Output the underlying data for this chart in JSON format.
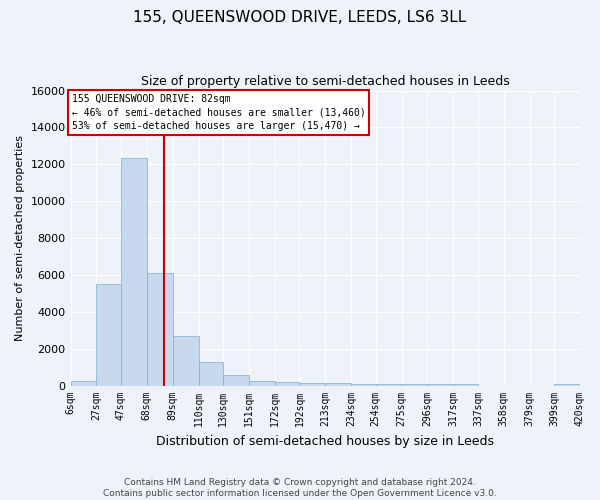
{
  "title": "155, QUEENSWOOD DRIVE, LEEDS, LS6 3LL",
  "subtitle": "Size of property relative to semi-detached houses in Leeds",
  "xlabel": "Distribution of semi-detached houses by size in Leeds",
  "ylabel": "Number of semi-detached properties",
  "bar_color": "#c8d9ee",
  "bar_edge_color": "#7aadd4",
  "background_color": "#eef2f9",
  "vline_color": "#cc0000",
  "vline_x": 82,
  "annotation_title": "155 QUEENSWOOD DRIVE: 82sqm",
  "annotation_line1": "← 46% of semi-detached houses are smaller (13,460)",
  "annotation_line2": "53% of semi-detached houses are larger (15,470) →",
  "footer_line1": "Contains HM Land Registry data © Crown copyright and database right 2024.",
  "footer_line2": "Contains public sector information licensed under the Open Government Licence v3.0.",
  "bin_edges": [
    6,
    27,
    47,
    68,
    89,
    110,
    130,
    151,
    172,
    192,
    213,
    234,
    254,
    275,
    296,
    317,
    337,
    358,
    379,
    399,
    420
  ],
  "bin_values": [
    300,
    5500,
    12350,
    6100,
    2700,
    1300,
    600,
    270,
    200,
    175,
    150,
    130,
    120,
    100,
    95,
    85,
    0,
    0,
    0,
    130
  ],
  "ylim": [
    0,
    16000
  ],
  "yticks": [
    0,
    2000,
    4000,
    6000,
    8000,
    10000,
    12000,
    14000,
    16000
  ],
  "title_fontsize": 11,
  "subtitle_fontsize": 9,
  "ylabel_fontsize": 8,
  "xlabel_fontsize": 9,
  "footer_fontsize": 6.5
}
